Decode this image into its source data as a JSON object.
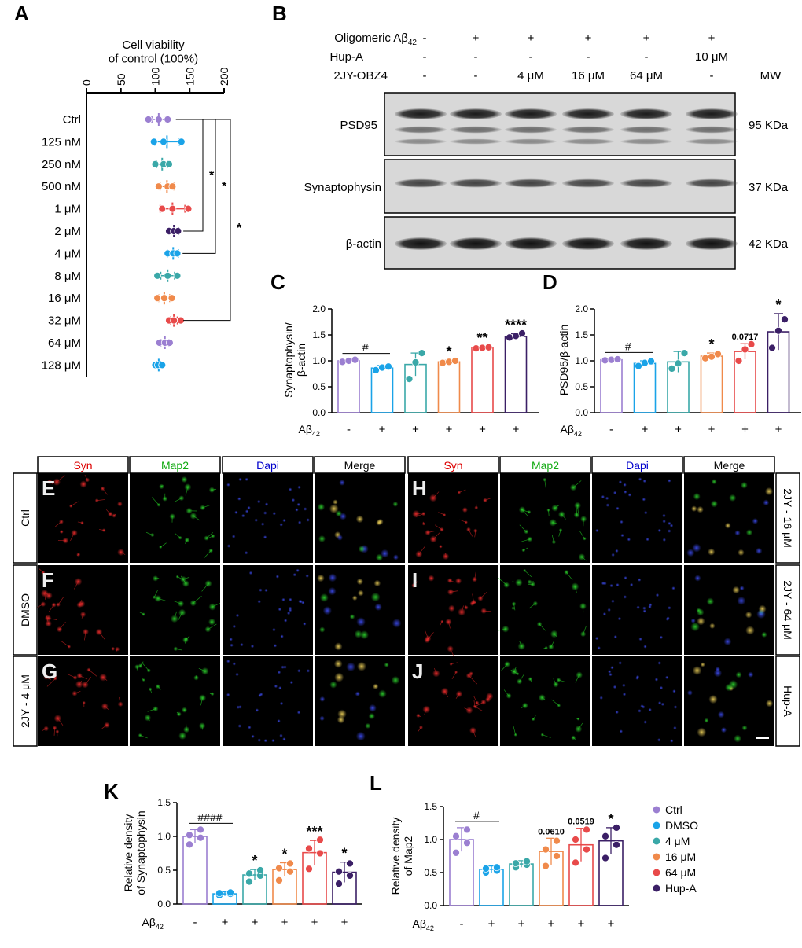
{
  "panel_letters": {
    "A": "A",
    "B": "B",
    "C": "C",
    "D": "D",
    "E": "E",
    "F": "F",
    "G": "G",
    "H": "H",
    "I": "I",
    "J": "J",
    "K": "K",
    "L": "L"
  },
  "colors": {
    "purple": "#9b7fd1",
    "blue": "#1aa3e8",
    "teal": "#3aa8a8",
    "orange": "#f08a4b",
    "red": "#e84a4a",
    "dark": "#3b1f66",
    "gridline": "#000",
    "blot_bg": "#d8d8d8"
  },
  "panelB": {
    "row_labels": [
      "Oligomeric Aβ42",
      "Hup-A",
      "2JY-OBZ4"
    ],
    "columns": [
      [
        "-",
        "-",
        "-"
      ],
      [
        "+",
        "-",
        "-"
      ],
      [
        "+",
        "-",
        "4 μM"
      ],
      [
        "+",
        "-",
        "16 μM"
      ],
      [
        "+",
        "-",
        "64 μM"
      ],
      [
        "+",
        "10 μM",
        "-"
      ]
    ],
    "mw_header": "MW",
    "blots": [
      {
        "name": "PSD95",
        "mw": "95 KDa"
      },
      {
        "name": "Synaptophysin",
        "mw": "37 KDa"
      },
      {
        "name": "β-actin",
        "mw": "42 KDa"
      }
    ]
  },
  "if_panels": {
    "channel_headers": [
      "Syn",
      "Map2",
      "Dapi",
      "Merge"
    ],
    "left_rows": [
      "Ctrl",
      "DMSO",
      "2JY - 4 μM"
    ],
    "right_rows": [
      "2JY - 16 μM",
      "2JY - 64 μM",
      "Hup-A"
    ],
    "left_letters": [
      "E",
      "F",
      "G"
    ],
    "right_letters": [
      "H",
      "I",
      "J"
    ]
  },
  "legend": {
    "items": [
      "Ctrl",
      "DMSO",
      "4 μM",
      "16 μM",
      "64 μM",
      "Hup-A"
    ]
  },
  "chart_data": [
    {
      "id": "A",
      "type": "scatter",
      "title": "Cell viability\nof control (100%)",
      "xlim": [
        0,
        200
      ],
      "ticks": [
        0,
        50,
        100,
        150,
        200
      ],
      "categories": [
        "Ctrl",
        "125 nM",
        "250 nM",
        "500 nM",
        "1 μM",
        "2 μM",
        "4 μM",
        "8 μM",
        "16 μM",
        "32 μM",
        "64 μM",
        "128 μM"
      ],
      "means": [
        105,
        117,
        110,
        117,
        125,
        127,
        126,
        118,
        113,
        127,
        114,
        105
      ],
      "sd": [
        10,
        18,
        8,
        10,
        18,
        7,
        8,
        10,
        8,
        5,
        6,
        3
      ],
      "points": [
        [
          90,
          105,
          118
        ],
        [
          98,
          112,
          138
        ],
        [
          100,
          112,
          120
        ],
        [
          105,
          118,
          125
        ],
        [
          110,
          125,
          148
        ],
        [
          120,
          127,
          133
        ],
        [
          118,
          126,
          132
        ],
        [
          103,
          118,
          132
        ],
        [
          103,
          113,
          124
        ],
        [
          120,
          127,
          137
        ],
        [
          106,
          114,
          121
        ],
        [
          100,
          104,
          110
        ]
      ],
      "significance": [
        {
          "from": "Ctrl",
          "to": "2 μM",
          "label": "*"
        },
        {
          "from": "Ctrl",
          "to": "4 μM",
          "label": "*"
        },
        {
          "from": "Ctrl",
          "to": "32 μM",
          "label": "*"
        }
      ]
    },
    {
      "id": "C",
      "type": "bar",
      "ylabel": "Synaptophysin/\nβ-actin",
      "ylim": [
        0,
        2.0
      ],
      "ticks": [
        "0.0",
        "0.5",
        "1.0",
        "1.5",
        "2.0"
      ],
      "x_prefix": "Aβ42",
      "categories": [
        "-",
        "+",
        "+",
        "+",
        "+",
        "+"
      ],
      "values": [
        1.0,
        0.86,
        0.93,
        0.98,
        1.25,
        1.47
      ],
      "sd": [
        0.02,
        0.05,
        0.22,
        0.03,
        0.02,
        0.05
      ],
      "points": [
        [
          0.98,
          1.0,
          1.02
        ],
        [
          0.82,
          0.87,
          0.89
        ],
        [
          0.65,
          0.97,
          1.15
        ],
        [
          0.96,
          0.98,
          1.0
        ],
        [
          1.24,
          1.25,
          1.26
        ],
        [
          1.45,
          1.48,
          1.53
        ]
      ],
      "annotations": [
        "#",
        "",
        "",
        "*",
        "**",
        "****"
      ]
    },
    {
      "id": "D",
      "type": "bar",
      "ylabel": "PSD95/β-actin",
      "ylim": [
        0,
        2.0
      ],
      "ticks": [
        "0.0",
        "0.5",
        "1.0",
        "1.5",
        "2.0"
      ],
      "x_prefix": "Aβ42",
      "categories": [
        "-",
        "+",
        "+",
        "+",
        "+",
        "+"
      ],
      "values": [
        1.02,
        0.95,
        0.98,
        1.09,
        1.18,
        1.56
      ],
      "sd": [
        0.02,
        0.05,
        0.2,
        0.06,
        0.15,
        0.35
      ],
      "points": [
        [
          1.01,
          1.02,
          1.03
        ],
        [
          0.9,
          0.96,
          0.99
        ],
        [
          0.85,
          0.95,
          1.15
        ],
        [
          1.05,
          1.08,
          1.13
        ],
        [
          1.0,
          1.22,
          1.32
        ],
        [
          1.25,
          1.58,
          1.8
        ]
      ],
      "annotations": [
        "#",
        "",
        "",
        "*",
        "0.0717",
        "*"
      ]
    },
    {
      "id": "K",
      "type": "bar",
      "ylabel": "Relative density\nof Synaptophysin",
      "ylim": [
        0,
        1.5
      ],
      "ticks": [
        "0.0",
        "0.5",
        "1.0",
        "1.5"
      ],
      "x_prefix": "Aβ42",
      "categories": [
        "-",
        "+",
        "+",
        "+",
        "+",
        "+"
      ],
      "values": [
        1.0,
        0.15,
        0.43,
        0.51,
        0.76,
        0.47
      ],
      "sd": [
        0.1,
        0.03,
        0.08,
        0.1,
        0.18,
        0.15
      ],
      "points": [
        [
          0.88,
          0.98,
          1.02,
          1.1
        ],
        [
          0.13,
          0.15,
          0.16,
          0.17
        ],
        [
          0.33,
          0.42,
          0.45,
          0.5
        ],
        [
          0.35,
          0.48,
          0.53,
          0.6
        ],
        [
          0.52,
          0.75,
          0.82,
          0.95
        ],
        [
          0.3,
          0.42,
          0.48,
          0.6
        ]
      ],
      "annotations": [
        "####",
        "",
        "*",
        "*",
        "***",
        "*"
      ]
    },
    {
      "id": "L",
      "type": "bar",
      "ylabel": "Relative density\nof Map2",
      "ylim": [
        0,
        1.5
      ],
      "ticks": [
        "0.0",
        "0.5",
        "1.0",
        "1.5"
      ],
      "x_prefix": "Aβ42",
      "categories": [
        "-",
        "+",
        "+",
        "+",
        "+",
        "+"
      ],
      "values": [
        1.0,
        0.55,
        0.63,
        0.82,
        0.92,
        0.98
      ],
      "sd": [
        0.18,
        0.05,
        0.05,
        0.2,
        0.25,
        0.2
      ],
      "points": [
        [
          0.8,
          0.95,
          1.05,
          1.15
        ],
        [
          0.5,
          0.53,
          0.56,
          0.58
        ],
        [
          0.58,
          0.62,
          0.64,
          0.67
        ],
        [
          0.6,
          0.75,
          0.85,
          0.98
        ],
        [
          0.65,
          0.85,
          1.0,
          1.15
        ],
        [
          0.72,
          0.92,
          1.05,
          1.18
        ]
      ],
      "annotations": [
        "#",
        "",
        "",
        "0.0610",
        "0.0519",
        "*"
      ]
    }
  ]
}
